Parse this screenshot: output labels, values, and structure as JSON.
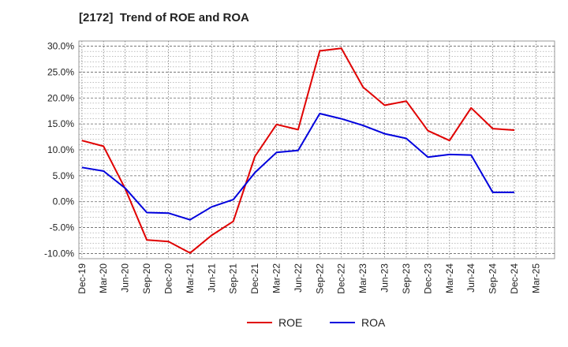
{
  "chart_data": {
    "type": "line",
    "title": "[2172]  Trend of ROE and ROA",
    "xlabel": "",
    "ylabel": "",
    "categories": [
      "Dec-19",
      "Mar-20",
      "Jun-20",
      "Sep-20",
      "Dec-20",
      "Mar-21",
      "Jun-21",
      "Sep-21",
      "Dec-21",
      "Mar-22",
      "Jun-22",
      "Sep-22",
      "Dec-22",
      "Mar-23",
      "Jun-23",
      "Sep-23",
      "Dec-23",
      "Mar-24",
      "Jun-24",
      "Sep-24",
      "Dec-24",
      "Mar-25"
    ],
    "yticks": [
      "30.0%",
      "25.0%",
      "20.0%",
      "15.0%",
      "10.0%",
      "5.0%",
      "0.0%",
      "-5.0%",
      "-10.0%"
    ],
    "ytick_values": [
      30,
      25,
      20,
      15,
      10,
      5,
      0,
      -5,
      -10
    ],
    "ylim": [
      -11,
      31
    ],
    "grid": true,
    "legend_position": "bottom",
    "series": [
      {
        "name": "ROE",
        "color": "#e00000",
        "values": [
          11.8,
          10.7,
          2.5,
          -7.4,
          -7.7,
          -9.9,
          -6.5,
          -3.8,
          8.7,
          14.9,
          13.9,
          29.1,
          29.6,
          22.1,
          18.6,
          19.4,
          13.7,
          11.8,
          18.1,
          14.1,
          13.8,
          null
        ]
      },
      {
        "name": "ROA",
        "color": "#0000dd",
        "values": [
          6.6,
          5.9,
          2.6,
          -2.1,
          -2.2,
          -3.5,
          -1.0,
          0.4,
          5.6,
          9.5,
          9.9,
          17.0,
          16.0,
          14.7,
          13.1,
          12.2,
          8.6,
          9.1,
          9.0,
          1.8,
          1.8,
          null
        ]
      }
    ]
  }
}
